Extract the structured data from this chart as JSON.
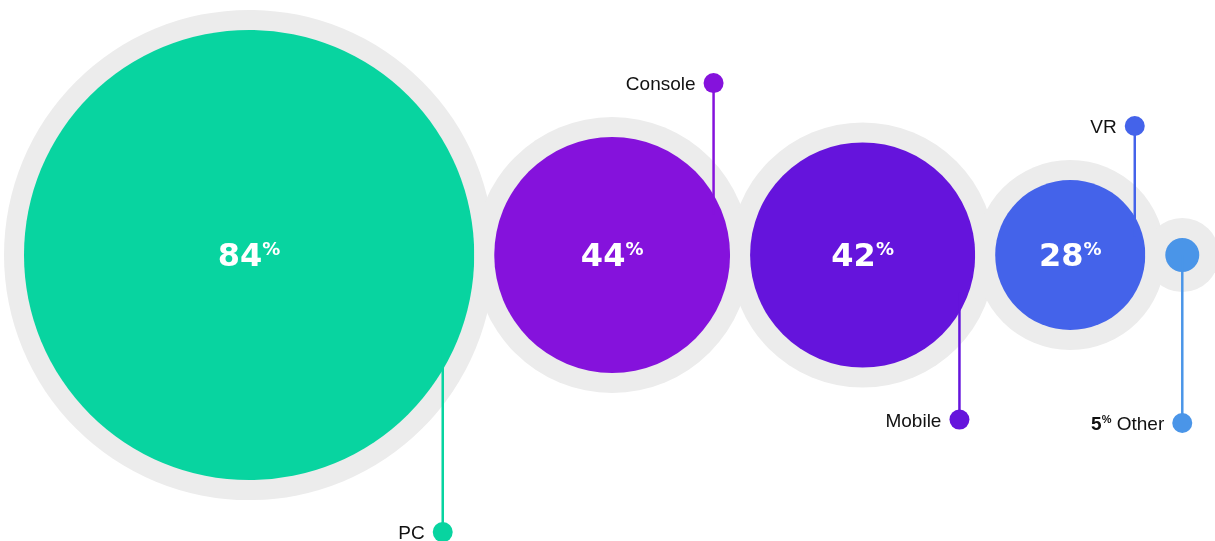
{
  "chart_data": {
    "type": "other",
    "categories": [
      "PC",
      "Console",
      "Mobile",
      "VR",
      "Other"
    ],
    "values": [
      84,
      44,
      42,
      28,
      5
    ],
    "value_labels": [
      "84$^{%}$",
      "44$^{%}$",
      "42$^{%}$",
      "28$^{%}$",
      "5$^{%}$"
    ],
    "colors": [
      "#08d4a0",
      "#8512dc",
      "#6514dc",
      "#4463ea",
      "#4a95e8"
    ]
  }
}
